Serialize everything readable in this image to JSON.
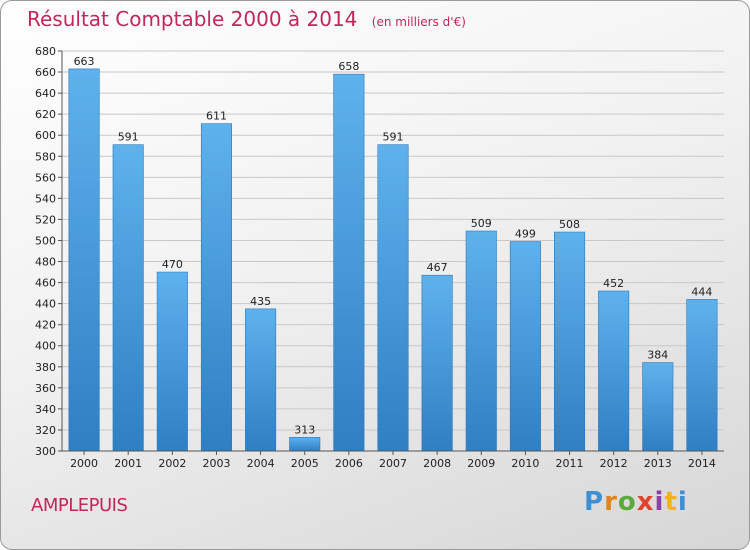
{
  "header": {
    "title": "Résultat Comptable 2000 à 2014",
    "unit": "(en milliers d'€)"
  },
  "footer": {
    "commune": "AMPLEPUIS",
    "logo_text": "Proxiti"
  },
  "colors": {
    "title": "#c0275a",
    "bar_top": "#5eb2ec",
    "bar_bottom": "#2f7fc3"
  },
  "chart_data": {
    "type": "bar",
    "title": "Résultat Comptable 2000 à 2014",
    "subtitle": "(en milliers d'€)",
    "xlabel": "",
    "ylabel": "",
    "ylim": [
      300,
      680
    ],
    "ytick_step": 20,
    "grid": true,
    "categories": [
      "2000",
      "2001",
      "2002",
      "2003",
      "2004",
      "2005",
      "2006",
      "2007",
      "2008",
      "2009",
      "2010",
      "2011",
      "2012",
      "2013",
      "2014"
    ],
    "values": [
      663,
      591,
      470,
      611,
      435,
      313,
      658,
      591,
      467,
      509,
      499,
      508,
      452,
      384,
      444
    ]
  }
}
